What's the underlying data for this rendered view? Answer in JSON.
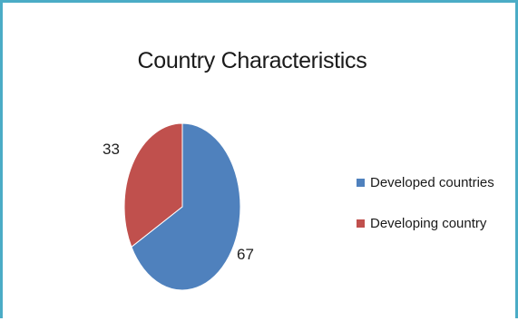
{
  "chart_data": {
    "type": "pie",
    "title": "Country Characteristics",
    "categories": [
      "Developed countries",
      "Developing country"
    ],
    "values": [
      67,
      33
    ],
    "data_labels": [
      "67",
      "33"
    ],
    "colors": [
      "#4f81bd",
      "#c0504d"
    ],
    "legend_position": "right"
  },
  "theme": {
    "frame_border_color": "#4bacc6"
  }
}
